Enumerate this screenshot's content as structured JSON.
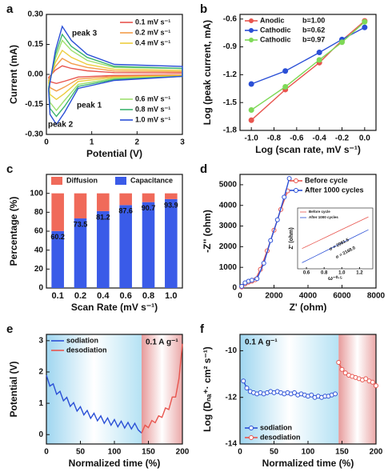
{
  "chart_data": [
    {
      "type": "line",
      "label": "a",
      "closed": true,
      "xlabel": "Potential (V)",
      "ylabel": "Current (mA)",
      "xlim": [
        0,
        3
      ],
      "xticks": [
        0,
        1,
        2,
        3
      ],
      "ylim": [
        -0.3,
        0.3
      ],
      "yticks": [
        {
          "value": -0.3,
          "label": "-0.30"
        },
        {
          "value": -0.15,
          "label": "-0.15"
        },
        {
          "value": 0,
          "label": "0.00"
        },
        {
          "value": 0.15,
          "label": "0.15"
        },
        {
          "value": 0.3,
          "label": "0.30"
        }
      ],
      "legend": "right",
      "annotations": [
        "peak 3",
        "peak 1",
        "peak 2"
      ],
      "x": [
        0.05,
        0.2,
        0.35,
        0.55,
        0.9,
        1.5,
        3,
        3,
        1.5,
        0.7,
        0.4,
        0.22,
        0.08,
        0.05
      ],
      "series": [
        {
          "name": "0.1 mV s⁻¹",
          "color": "#e8554e",
          "values": [
            -0.015,
            0.022,
            0.043,
            0.03,
            0.018,
            0.009,
            0.007,
            -0.002,
            -0.005,
            -0.013,
            -0.034,
            -0.045,
            -0.036,
            -0.015
          ]
        },
        {
          "name": "0.2 mV s⁻¹",
          "color": "#f39c4a",
          "values": [
            -0.03,
            0.04,
            0.08,
            0.055,
            0.035,
            0.017,
            0.013,
            -0.003,
            -0.01,
            -0.023,
            -0.063,
            -0.083,
            -0.066,
            -0.03
          ]
        },
        {
          "name": "0.4 mV s⁻¹",
          "color": "#eccd3e",
          "values": [
            -0.04,
            0.06,
            0.12,
            0.085,
            0.05,
            0.025,
            0.02,
            -0.005,
            -0.015,
            -0.035,
            -0.095,
            -0.125,
            -0.1,
            -0.04
          ]
        },
        {
          "name": "0.6 mV s⁻¹",
          "color": "#9ee06e",
          "values": [
            -0.06,
            0.08,
            0.17,
            0.12,
            0.07,
            0.035,
            0.03,
            -0.01,
            -0.02,
            -0.05,
            -0.13,
            -0.18,
            -0.14,
            -0.06
          ]
        },
        {
          "name": "0.8 mV s⁻¹",
          "color": "#3cb46e",
          "values": [
            -0.07,
            0.1,
            0.2,
            0.14,
            0.085,
            0.04,
            0.03,
            -0.01,
            -0.025,
            -0.06,
            -0.16,
            -0.21,
            -0.17,
            -0.07
          ]
        },
        {
          "name": "1.0 mV s⁻¹",
          "color": "#2a4fd6",
          "values": [
            -0.08,
            0.12,
            0.24,
            0.17,
            0.1,
            0.05,
            0.04,
            -0.01,
            -0.03,
            -0.07,
            -0.19,
            -0.25,
            -0.2,
            -0.08
          ]
        }
      ]
    },
    {
      "type": "line",
      "label": "b",
      "marker": "filled",
      "xlabel": "Log (scan rate, mV s⁻¹)",
      "ylabel": "Log (peak current, mA)",
      "xlim": [
        -1.1,
        0.1
      ],
      "xticks": [
        {
          "value": -1,
          "label": "-1.0"
        },
        -0.8,
        -0.6,
        -0.4,
        -0.2,
        {
          "value": 0,
          "label": "0.0"
        }
      ],
      "ylim": [
        -1.8,
        -0.55
      ],
      "yticks": [
        -1.8,
        -1.5,
        -1.2,
        -0.9,
        -0.6
      ],
      "legend": "upper left",
      "x": [
        -1,
        -0.7,
        -0.4,
        -0.2,
        0
      ],
      "series": [
        {
          "name": "Anodic",
          "b_text": "b=1.00",
          "color": "#e8554e",
          "values": [
            -1.69,
            -1.36,
            -1.07,
            -0.83,
            -0.62
          ]
        },
        {
          "name": "Cathodic",
          "b_text": "b=0.62",
          "color": "#2a4fd6",
          "values": [
            -1.3,
            -1.16,
            -0.96,
            -0.82,
            -0.69
          ]
        },
        {
          "name": "Cathodic",
          "b_text": "b=0.97",
          "color": "#7ed957",
          "values": [
            -1.58,
            -1.33,
            -1.04,
            -0.85,
            -0.63
          ]
        }
      ]
    },
    {
      "type": "bar",
      "label": "c",
      "stacked": true,
      "xlabel": "Scan Rate (mV s⁻¹)",
      "ylabel": "Percentage (%)",
      "categories": [
        "0.1",
        "0.2",
        "0.4",
        "0.6",
        "0.8",
        "1.0"
      ],
      "ylim": [
        0,
        120
      ],
      "yticks": [
        0,
        20,
        40,
        60,
        80,
        100
      ],
      "legend": "top",
      "series": [
        {
          "name": "Diffusion",
          "color": "#f06a5a",
          "values": [
            39.8,
            26.5,
            18.8,
            12.4,
            9.3,
            6.1
          ]
        },
        {
          "name": "Capacitance",
          "color": "#3a5be8",
          "values": [
            60.2,
            73.5,
            81.2,
            87.6,
            90.7,
            93.9
          ],
          "labels": true
        }
      ]
    },
    {
      "type": "line",
      "label": "d",
      "marker": "open",
      "xlabel": "Z' (ohm)",
      "ylabel": "-Z'' (ohm)",
      "xlim": [
        0,
        8000
      ],
      "xticks": [
        0,
        2000,
        4000,
        6000,
        8000
      ],
      "ylim": [
        0,
        5500
      ],
      "yticks": [
        0,
        1000,
        2000,
        3000,
        4000,
        5000
      ],
      "legend": "upper right",
      "series": [
        {
          "name": "Before cycle",
          "color": "#e8554e",
          "x": [
            100,
            300,
            500,
            700,
            900,
            1200,
            1600,
            2000,
            2400,
            2800
          ],
          "values": [
            50,
            200,
            280,
            330,
            400,
            900,
            1800,
            2800,
            3800,
            4700
          ]
        },
        {
          "name": "After 1000 cycles",
          "color": "#2a4fd6",
          "x": [
            100,
            300,
            500,
            700,
            1000,
            1400,
            1800,
            2200,
            2600,
            2900
          ],
          "values": [
            80,
            250,
            330,
            380,
            450,
            1200,
            2300,
            3300,
            4400,
            5300
          ]
        }
      ]
    },
    {
      "type": "line",
      "xlabel": "ω⁻⁰·⁵",
      "ylabel": "Z' (ohm)",
      "xlim": [
        0.5,
        1.35
      ],
      "xticks": [
        0.6,
        0.8,
        {
          "value": 1,
          "label": "1.0"
        },
        1.2
      ],
      "ylim": [
        1000,
        4000
      ],
      "legend": "upper left",
      "annotations": [
        "σ = 2081.5",
        "σ = 2168.0"
      ],
      "x": [
        0.55,
        0.7,
        0.85,
        1.0,
        1.15,
        1.3
      ],
      "series": [
        {
          "name": "Before cycle",
          "color": "#e8554e",
          "values": [
            2000,
            2312,
            2624,
            2937,
            3249,
            3561
          ]
        },
        {
          "name": "After 1000 cycles",
          "color": "#2a4fd6",
          "values": [
            1300,
            1625,
            1951,
            2276,
            2601,
            2926
          ]
        }
      ]
    },
    {
      "type": "line",
      "label": "e",
      "phases": true,
      "xlabel": "Normalized time (%)",
      "ylabel": "Potential (V)",
      "xlim": [
        0,
        200
      ],
      "xticks": [
        0,
        50,
        100,
        150,
        200
      ],
      "ylim": [
        -0.3,
        3.2
      ],
      "yticks": [
        0,
        1,
        2,
        3
      ],
      "legend": "upper left",
      "annotations": [
        "0.1 A g⁻¹"
      ],
      "series": [
        {
          "name": "sodiation",
          "color": "#2a4fd6",
          "x": [
            0,
            5,
            10,
            15,
            20,
            25,
            30,
            35,
            40,
            45,
            50,
            55,
            60,
            65,
            70,
            75,
            80,
            85,
            90,
            95,
            100,
            105,
            110,
            115,
            120,
            125,
            130,
            135,
            140
          ],
          "values": [
            1.9,
            1.55,
            1.62,
            1.29,
            1.38,
            1.08,
            1.19,
            0.9,
            1.02,
            0.75,
            0.89,
            0.63,
            0.77,
            0.52,
            0.68,
            0.44,
            0.6,
            0.36,
            0.53,
            0.3,
            0.48,
            0.25,
            0.43,
            0.21,
            0.39,
            0.18,
            0.36,
            0.15,
            0.05
          ]
        },
        {
          "name": "desodiation",
          "color": "#e8554e",
          "x": [
            140,
            145,
            150,
            155,
            160,
            165,
            170,
            175,
            180,
            185,
            190,
            195,
            200
          ],
          "values": [
            0.05,
            0.3,
            0.22,
            0.45,
            0.38,
            0.6,
            0.55,
            0.85,
            0.8,
            1.2,
            1.2,
            1.8,
            2.9
          ]
        }
      ]
    },
    {
      "type": "line",
      "label": "f",
      "phases": true,
      "marker": "open",
      "xlabel": "Normalized time (%)",
      "ylabel": "Log (Dₙₐ⁺· cm² s⁻¹)",
      "xlim": [
        0,
        200
      ],
      "xticks": [
        0,
        50,
        100,
        150,
        200
      ],
      "ylim": [
        -14,
        -9.3
      ],
      "yticks": [
        -14,
        -12,
        -10
      ],
      "legend": "lower left",
      "annotations": [
        "0.1 A g⁻¹"
      ],
      "series": [
        {
          "name": "sodiation",
          "color": "#2a4fd6",
          "x": [
            5,
            10,
            15,
            20,
            25,
            30,
            35,
            40,
            45,
            50,
            55,
            60,
            65,
            70,
            75,
            80,
            85,
            90,
            95,
            100,
            105,
            110,
            115,
            120,
            125,
            130,
            135,
            140
          ],
          "values": [
            -11.3,
            -11.6,
            -11.75,
            -11.8,
            -11.85,
            -11.8,
            -11.85,
            -11.8,
            -11.75,
            -11.8,
            -11.75,
            -11.8,
            -11.85,
            -11.8,
            -11.85,
            -11.8,
            -11.9,
            -11.85,
            -11.9,
            -11.95,
            -11.9,
            -12.0,
            -11.95,
            -12.0,
            -11.95,
            -11.95,
            -11.9,
            -11.85
          ]
        },
        {
          "name": "desodiation",
          "color": "#e8554e",
          "x": [
            145,
            150,
            155,
            160,
            165,
            170,
            175,
            180,
            185,
            190,
            195,
            200
          ],
          "values": [
            -10.5,
            -10.8,
            -10.95,
            -11.05,
            -11.1,
            -11.15,
            -11.2,
            -11.25,
            -11.2,
            -11.3,
            -11.35,
            -11.5
          ]
        }
      ]
    }
  ]
}
